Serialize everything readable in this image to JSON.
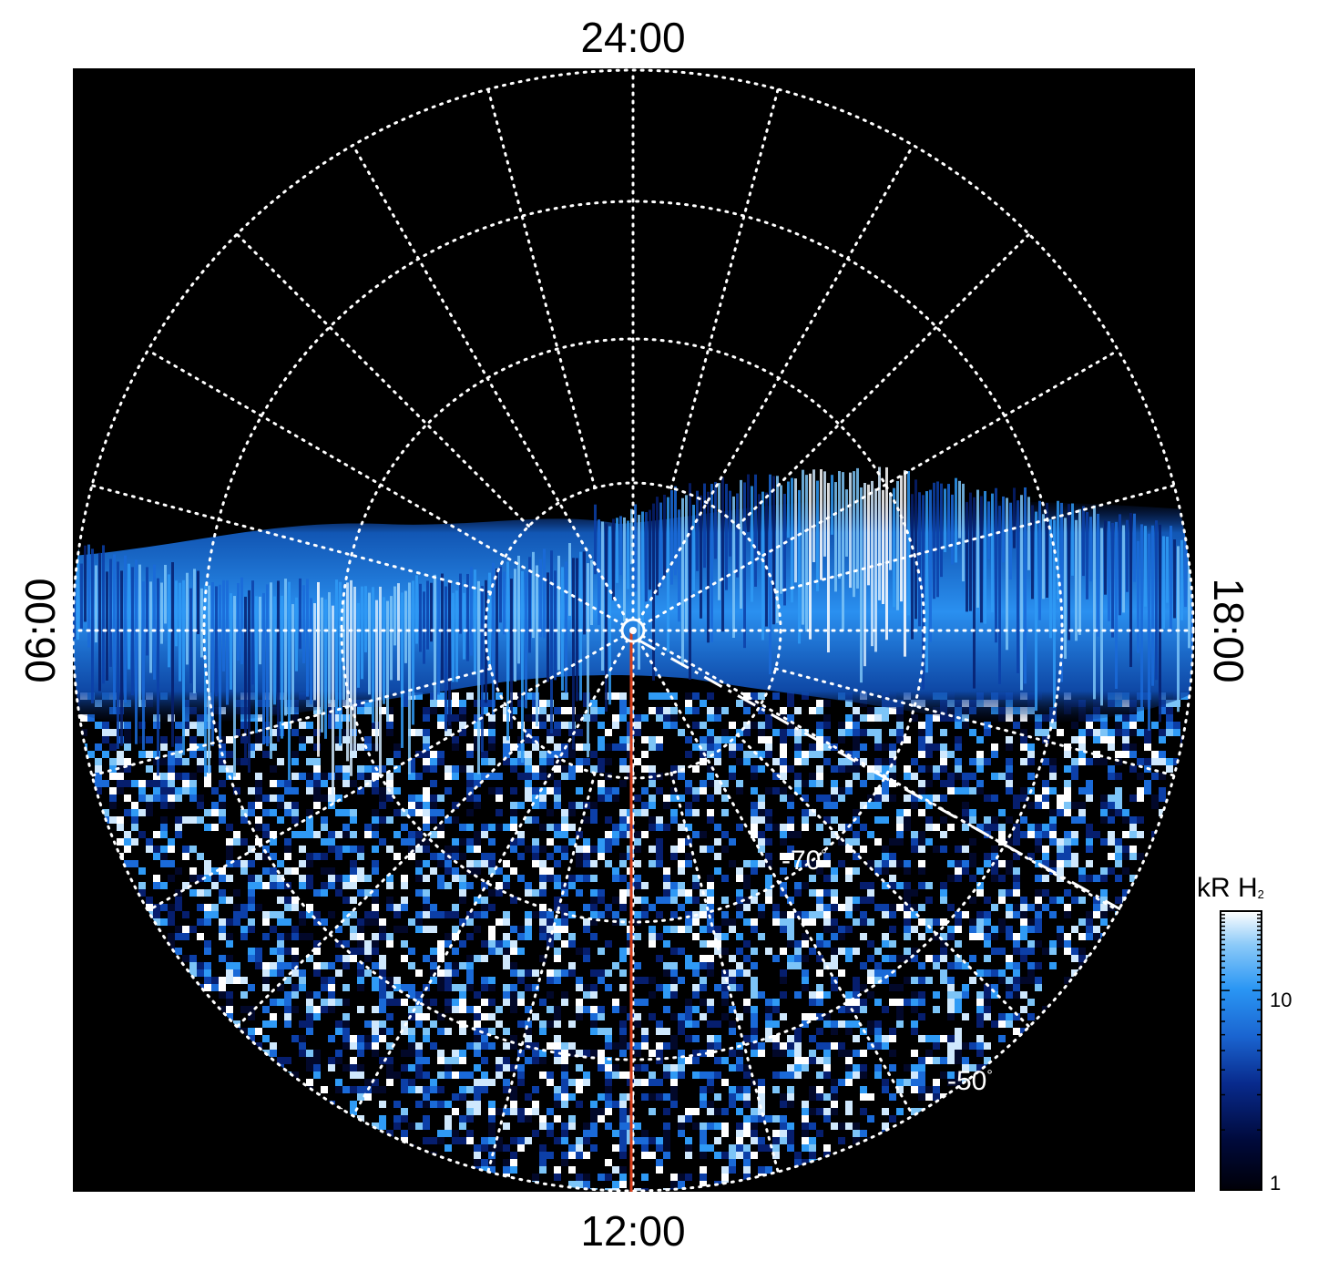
{
  "local_time_labels": {
    "top": "24:00",
    "bottom": "12:00",
    "left": "06:00",
    "right": "18:00"
  },
  "latitude_labels": [
    {
      "text": "-70",
      "unit": "°"
    },
    {
      "text": "-50",
      "unit": "°"
    }
  ],
  "colorbar": {
    "unit": "kR H",
    "unit_sub": "2",
    "scale": "log",
    "range": [
      1,
      25
    ],
    "tick_labels": [
      {
        "value": 10,
        "label": "10"
      },
      {
        "value": 1,
        "label": "1"
      }
    ],
    "colors": [
      "#000008",
      "#000a3c",
      "#082a8c",
      "#1a64d0",
      "#2a96f4",
      "#8ccaf8",
      "#ffffff"
    ]
  },
  "colors": {
    "background": "#000000",
    "grid": "#ffffff",
    "meridian_line": "#d8401c",
    "dashed_line": "#ffffff"
  }
}
